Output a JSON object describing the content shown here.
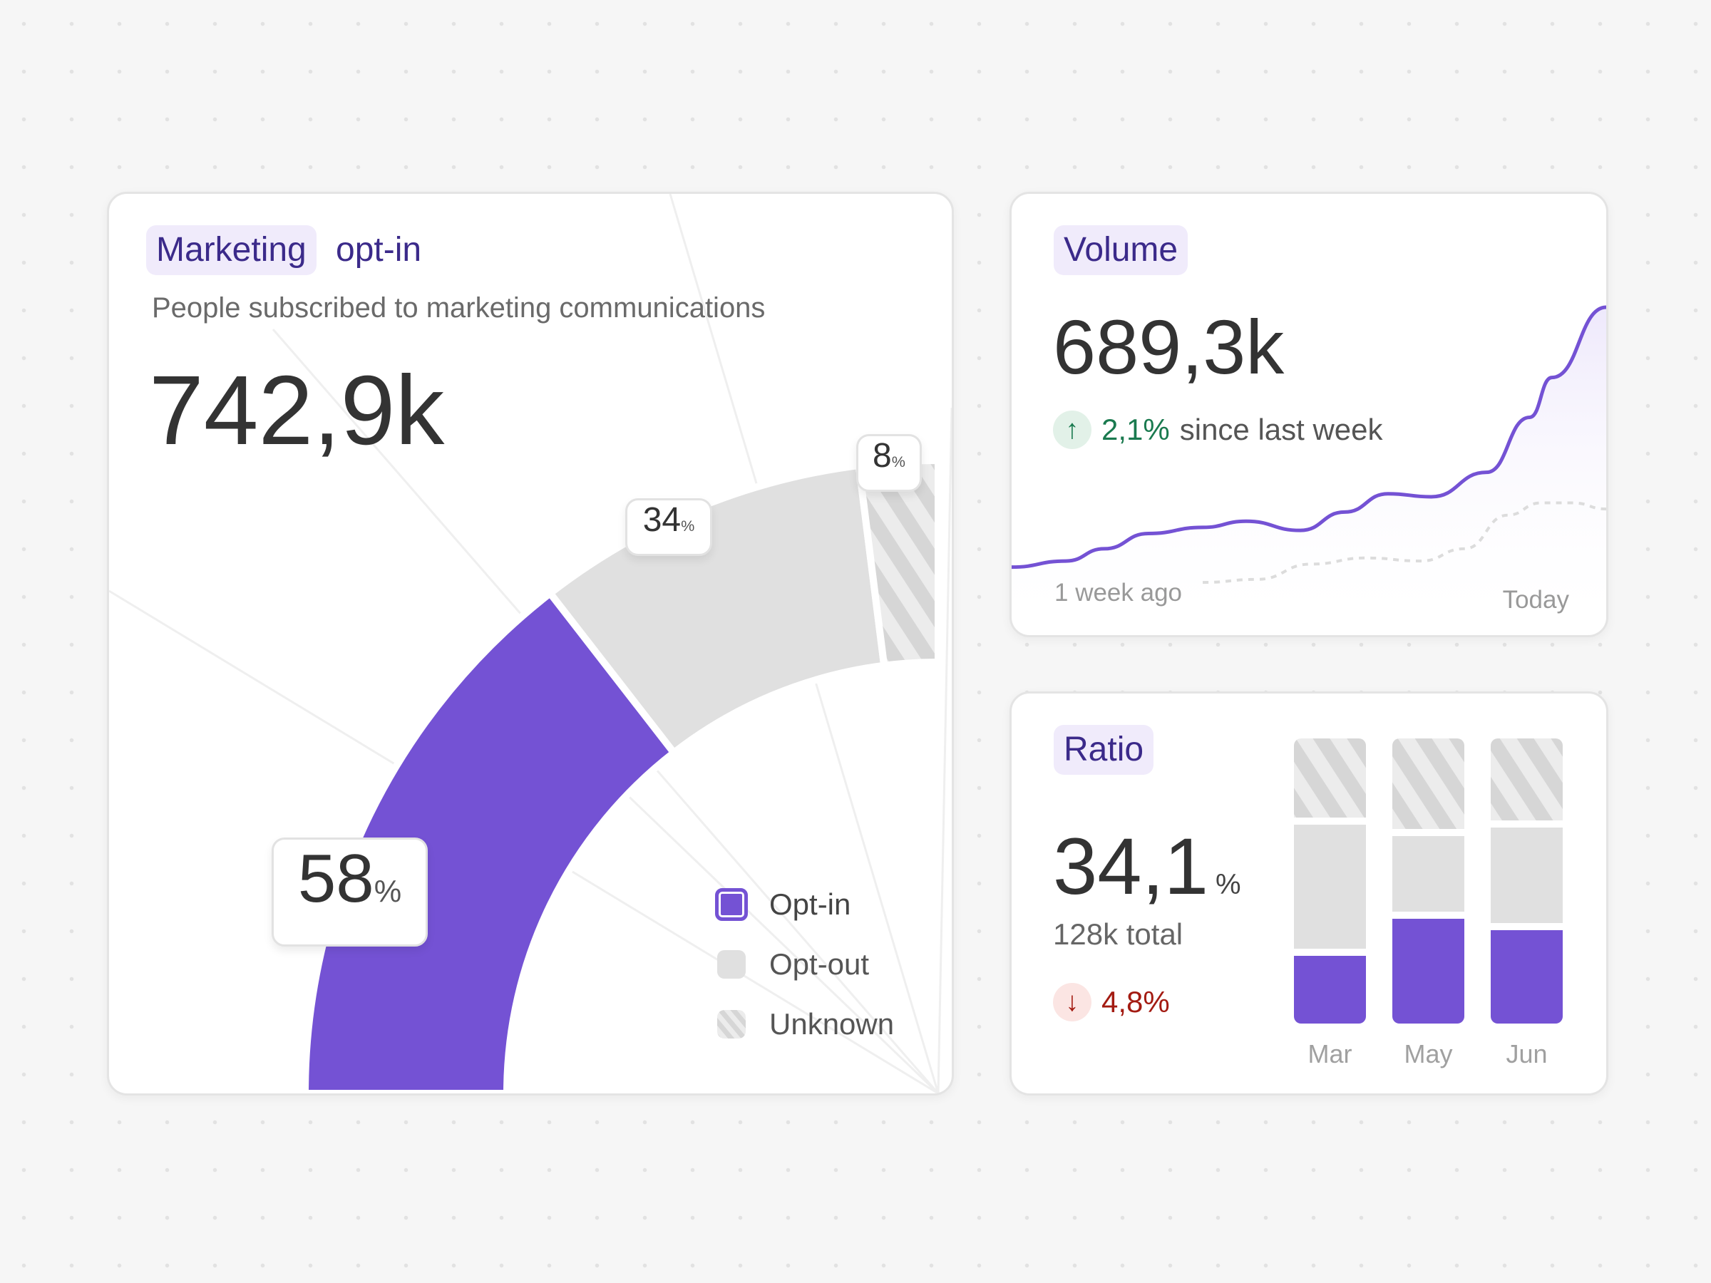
{
  "colors": {
    "opt_in": "#7452d4",
    "opt_out": "#e0e0e0",
    "unknown_a": "#d6d6d6",
    "unknown_b": "#ececec",
    "title_text": "#3b2a8a",
    "title_bg": "#f0ebfb",
    "positive": "#1a7a4f",
    "negative": "#a31b12"
  },
  "marketing": {
    "title_highlight": "Marketing",
    "title_rest": "opt-in",
    "subtitle": "People subscribed to marketing communications",
    "value": "742,9k",
    "legend": [
      {
        "label": "Opt-in",
        "icon": "square-outline-icon"
      },
      {
        "label": "Opt-out",
        "icon": "square-filled-icon"
      },
      {
        "label": "Unknown",
        "icon": "hatched-square-icon"
      }
    ]
  },
  "volume": {
    "title": "Volume",
    "value": "689,3k",
    "delta": "2,1%",
    "delta_suffix": "since last week",
    "delta_icon": "arrow-up-icon",
    "x_start": "1 week ago",
    "x_end": "Today"
  },
  "ratio": {
    "title": "Ratio",
    "value": "34,1",
    "unit": "%",
    "total": "128k total",
    "delta": "4,8%",
    "delta_icon": "arrow-down-icon"
  },
  "chart_data": [
    {
      "type": "pie",
      "variant": "quarter-donut",
      "categories": [
        "Opt-in",
        "Opt-out",
        "Unknown"
      ],
      "values": [
        58,
        34,
        8
      ],
      "labels": [
        {
          "num": "58",
          "unit": "%"
        },
        {
          "num": "34",
          "unit": "%"
        },
        {
          "num": "8",
          "unit": "%"
        }
      ],
      "legend": "bottom-right"
    },
    {
      "type": "area",
      "xlabel_start": "1 week ago",
      "xlabel_end": "Today",
      "grid": false,
      "series": [
        {
          "style": "solid",
          "x": [
            0,
            0.64,
            1.09,
            1.61,
            2.25,
            2.76,
            3.4,
            3.92,
            4.43,
            4.94,
            5.59,
            6.1,
            6.36,
            7
          ],
          "values": [
            15,
            17,
            21,
            26,
            28,
            30,
            27,
            33,
            39,
            38,
            46,
            64,
            77,
            100
          ]
        },
        {
          "style": "dashed",
          "x": [
            2.25,
            2.89,
            3.53,
            4.17,
            4.82,
            5.33,
            5.84,
            6.23,
            6.61,
            7
          ],
          "values": [
            10,
            11,
            16,
            18,
            17,
            21,
            32,
            36,
            36,
            34
          ]
        }
      ]
    },
    {
      "type": "bar",
      "stacked": true,
      "categories": [
        "Mar",
        "May",
        "Jun"
      ],
      "series": [
        {
          "name": "Opt-in",
          "values": [
            25,
            38,
            34
          ]
        },
        {
          "name": "Opt-out",
          "values": [
            46,
            29,
            36
          ]
        },
        {
          "name": "Unknown",
          "values": [
            29,
            33,
            30
          ]
        }
      ]
    }
  ]
}
